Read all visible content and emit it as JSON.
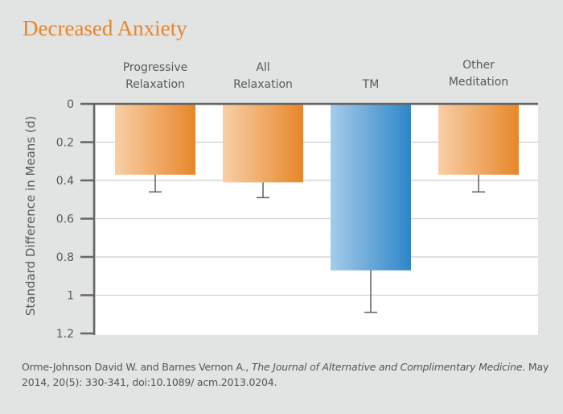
{
  "title": "Decreased Anxiety",
  "chart_data": {
    "type": "bar",
    "title": "Decreased Anxiety",
    "orientation": "vertical-inverted",
    "categories": [
      [
        "Progressive",
        "Relaxation"
      ],
      [
        "All",
        "Relaxation"
      ],
      [
        "TM"
      ],
      [
        "Other",
        "Meditation"
      ]
    ],
    "category_names": [
      "Progressive Relaxation",
      "All Relaxation",
      "TM",
      "Other Meditation"
    ],
    "values": [
      0.37,
      0.41,
      0.87,
      0.37
    ],
    "error_upper": [
      0.46,
      0.49,
      1.09,
      0.46
    ],
    "bar_colors": [
      [
        "#f7cfa6",
        "#e8862a"
      ],
      [
        "#f7cfa6",
        "#e8862a"
      ],
      [
        "#a6cbea",
        "#2d86c8"
      ],
      [
        "#f7cfa6",
        "#e8862a"
      ]
    ],
    "xlabel": "",
    "ylabel": "Standard Difference in Means (d)",
    "ylim": [
      0,
      1.2
    ],
    "y_inverted": true,
    "yticks": [
      0,
      0.2,
      0.4,
      0.6,
      0.8,
      1,
      1.2
    ],
    "ytick_labels": [
      "0",
      "0.2",
      "0.4",
      "0.6",
      "0.8",
      "1",
      "1.2"
    ],
    "grid": true,
    "category_labels_position": "top"
  },
  "citation": {
    "authors": "Orme-Johnson David W. and Barnes Vernon A., ",
    "journal": "The Journal of Alternative and Complimentary Medicine",
    "details": ". May 2014, 20(5): 330-341, doi:10.1089/ acm.2013.0204."
  }
}
